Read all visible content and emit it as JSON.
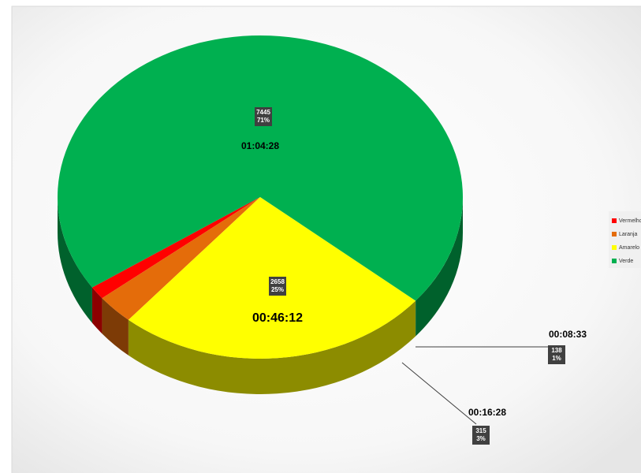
{
  "chart_data": {
    "type": "pie",
    "categories": [
      "Vermelho",
      "Laranja",
      "Amarelo",
      "Verde"
    ],
    "values": [
      138,
      315,
      2658,
      7445
    ],
    "percent_labels": [
      "1%",
      "3%",
      "25%",
      "71%"
    ],
    "time_labels": [
      "00:08:33",
      "00:16:28",
      "00:46:12",
      "01:04:28"
    ],
    "colors": [
      "#ff0000",
      "#e46c0a",
      "#ffff00",
      "#00b050"
    ],
    "legend": "right"
  }
}
